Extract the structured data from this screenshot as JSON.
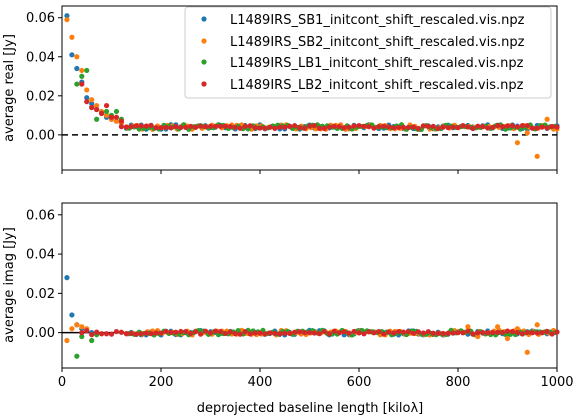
{
  "chart_data": [
    {
      "type": "scatter",
      "panel": "top",
      "xlabel": "",
      "ylabel": "average real [Jy]",
      "xlim": [
        0,
        1000
      ],
      "ylim": [
        -0.018,
        0.066
      ],
      "xticks": [
        0,
        200,
        400,
        600,
        800,
        1000
      ],
      "xtick_labels_visible": false,
      "yticks": [
        0.0,
        0.02,
        0.04,
        0.06
      ],
      "ytick_labels": [
        "0.00",
        "0.02",
        "0.04",
        "0.06"
      ],
      "reference_line": {
        "y": 0,
        "style": "dashed",
        "color": "#000000"
      },
      "legend": {
        "placement": "top-right",
        "entries": [
          {
            "label": "L1489IRS_SB1_initcont_shift_rescaled.vis.npz",
            "color": "#1f77b4"
          },
          {
            "label": "L1489IRS_SB2_initcont_shift_rescaled.vis.npz",
            "color": "#ff7f0e"
          },
          {
            "label": "L1489IRS_LB1_initcont_shift_rescaled.vis.npz",
            "color": "#2ca02c"
          },
          {
            "label": "L1489IRS_LB2_initcont_shift_rescaled.vis.npz",
            "color": "#d62728"
          }
        ]
      },
      "series": [
        {
          "name": "L1489IRS_SB1_initcont_shift_rescaled.vis.npz",
          "color": "#1f77b4",
          "x": [
            10,
            20,
            30,
            40,
            50,
            60,
            70,
            80,
            90,
            100,
            110,
            120
          ],
          "y": [
            0.061,
            0.041,
            0.034,
            0.027,
            0.019,
            0.016,
            0.013,
            0.011,
            0.009,
            0.008,
            0.007,
            0.006
          ]
        },
        {
          "name": "L1489IRS_SB2_initcont_shift_rescaled.vis.npz",
          "color": "#ff7f0e",
          "x": [
            10,
            20,
            30,
            40,
            50,
            60,
            70,
            80,
            90,
            100,
            110,
            120,
            920,
            940,
            960,
            980,
            1000
          ],
          "y": [
            0.059,
            0.05,
            0.04,
            0.033,
            0.023,
            0.018,
            0.015,
            0.012,
            0.01,
            0.008,
            0.007,
            0.006,
            -0.004,
            0.001,
            -0.011,
            0.008,
            0.003
          ]
        },
        {
          "name": "L1489IRS_LB1_initcont_shift_rescaled.vis.npz",
          "color": "#2ca02c",
          "x": [
            30,
            40,
            50,
            60,
            70,
            80,
            90,
            100,
            110,
            120
          ],
          "y": [
            0.026,
            0.03,
            0.033,
            0.014,
            0.008,
            0.011,
            0.012,
            0.01,
            0.012,
            0.008
          ]
        },
        {
          "name": "L1489IRS_LB2_initcont_shift_rescaled.vis.npz",
          "color": "#d62728",
          "x": [
            40,
            50,
            60,
            70,
            80,
            90,
            100,
            110,
            120
          ],
          "y": [
            0.026,
            0.017,
            0.014,
            0.013,
            0.011,
            0.015,
            0.009,
            0.009,
            0.007
          ],
          "tail": {
            "x_start": 120,
            "x_end": 1000,
            "step": 10,
            "y_level": 0.004
          }
        }
      ]
    },
    {
      "type": "scatter",
      "panel": "bottom",
      "xlabel": "deprojected baseline length [kiloλ]",
      "ylabel": "average imag [Jy]",
      "xlim": [
        0,
        1000
      ],
      "ylim": [
        -0.018,
        0.066
      ],
      "xticks": [
        0,
        200,
        400,
        600,
        800,
        1000
      ],
      "xtick_labels": [
        "0",
        "200",
        "400",
        "600",
        "800",
        "1000"
      ],
      "yticks": [
        0.0,
        0.02,
        0.04,
        0.06
      ],
      "ytick_labels": [
        "0.00",
        "0.02",
        "0.04",
        "0.06"
      ],
      "reference_line": {
        "y": 0,
        "style": "solid",
        "color": "#000000"
      },
      "series": [
        {
          "name": "L1489IRS_SB1_initcont_shift_rescaled.vis.npz",
          "color": "#1f77b4",
          "x": [
            10,
            20,
            30,
            40,
            50,
            60
          ],
          "y": [
            0.028,
            0.009,
            0.004,
            0.002,
            0.001,
            0.0
          ]
        },
        {
          "name": "L1489IRS_SB2_initcont_shift_rescaled.vis.npz",
          "color": "#ff7f0e",
          "x": [
            10,
            20,
            30,
            40,
            50,
            820,
            840,
            880,
            900,
            920,
            940,
            960
          ],
          "y": [
            -0.004,
            0.002,
            0.004,
            0.003,
            0.002,
            0.003,
            -0.002,
            0.003,
            -0.003,
            0.002,
            -0.01,
            0.004
          ]
        },
        {
          "name": "L1489IRS_LB1_initcont_shift_rescaled.vis.npz",
          "color": "#2ca02c",
          "x": [
            30,
            40,
            60,
            70
          ],
          "y": [
            -0.012,
            -0.002,
            -0.004,
            -0.001
          ]
        },
        {
          "name": "L1489IRS_LB2_initcont_shift_rescaled.vis.npz",
          "color": "#d62728",
          "x": [
            40,
            50,
            60
          ],
          "y": [
            0.0,
            0.001,
            -0.001
          ],
          "tail": {
            "x_start": 70,
            "x_end": 1000,
            "step": 10,
            "y_level": 0.0
          }
        }
      ]
    }
  ]
}
